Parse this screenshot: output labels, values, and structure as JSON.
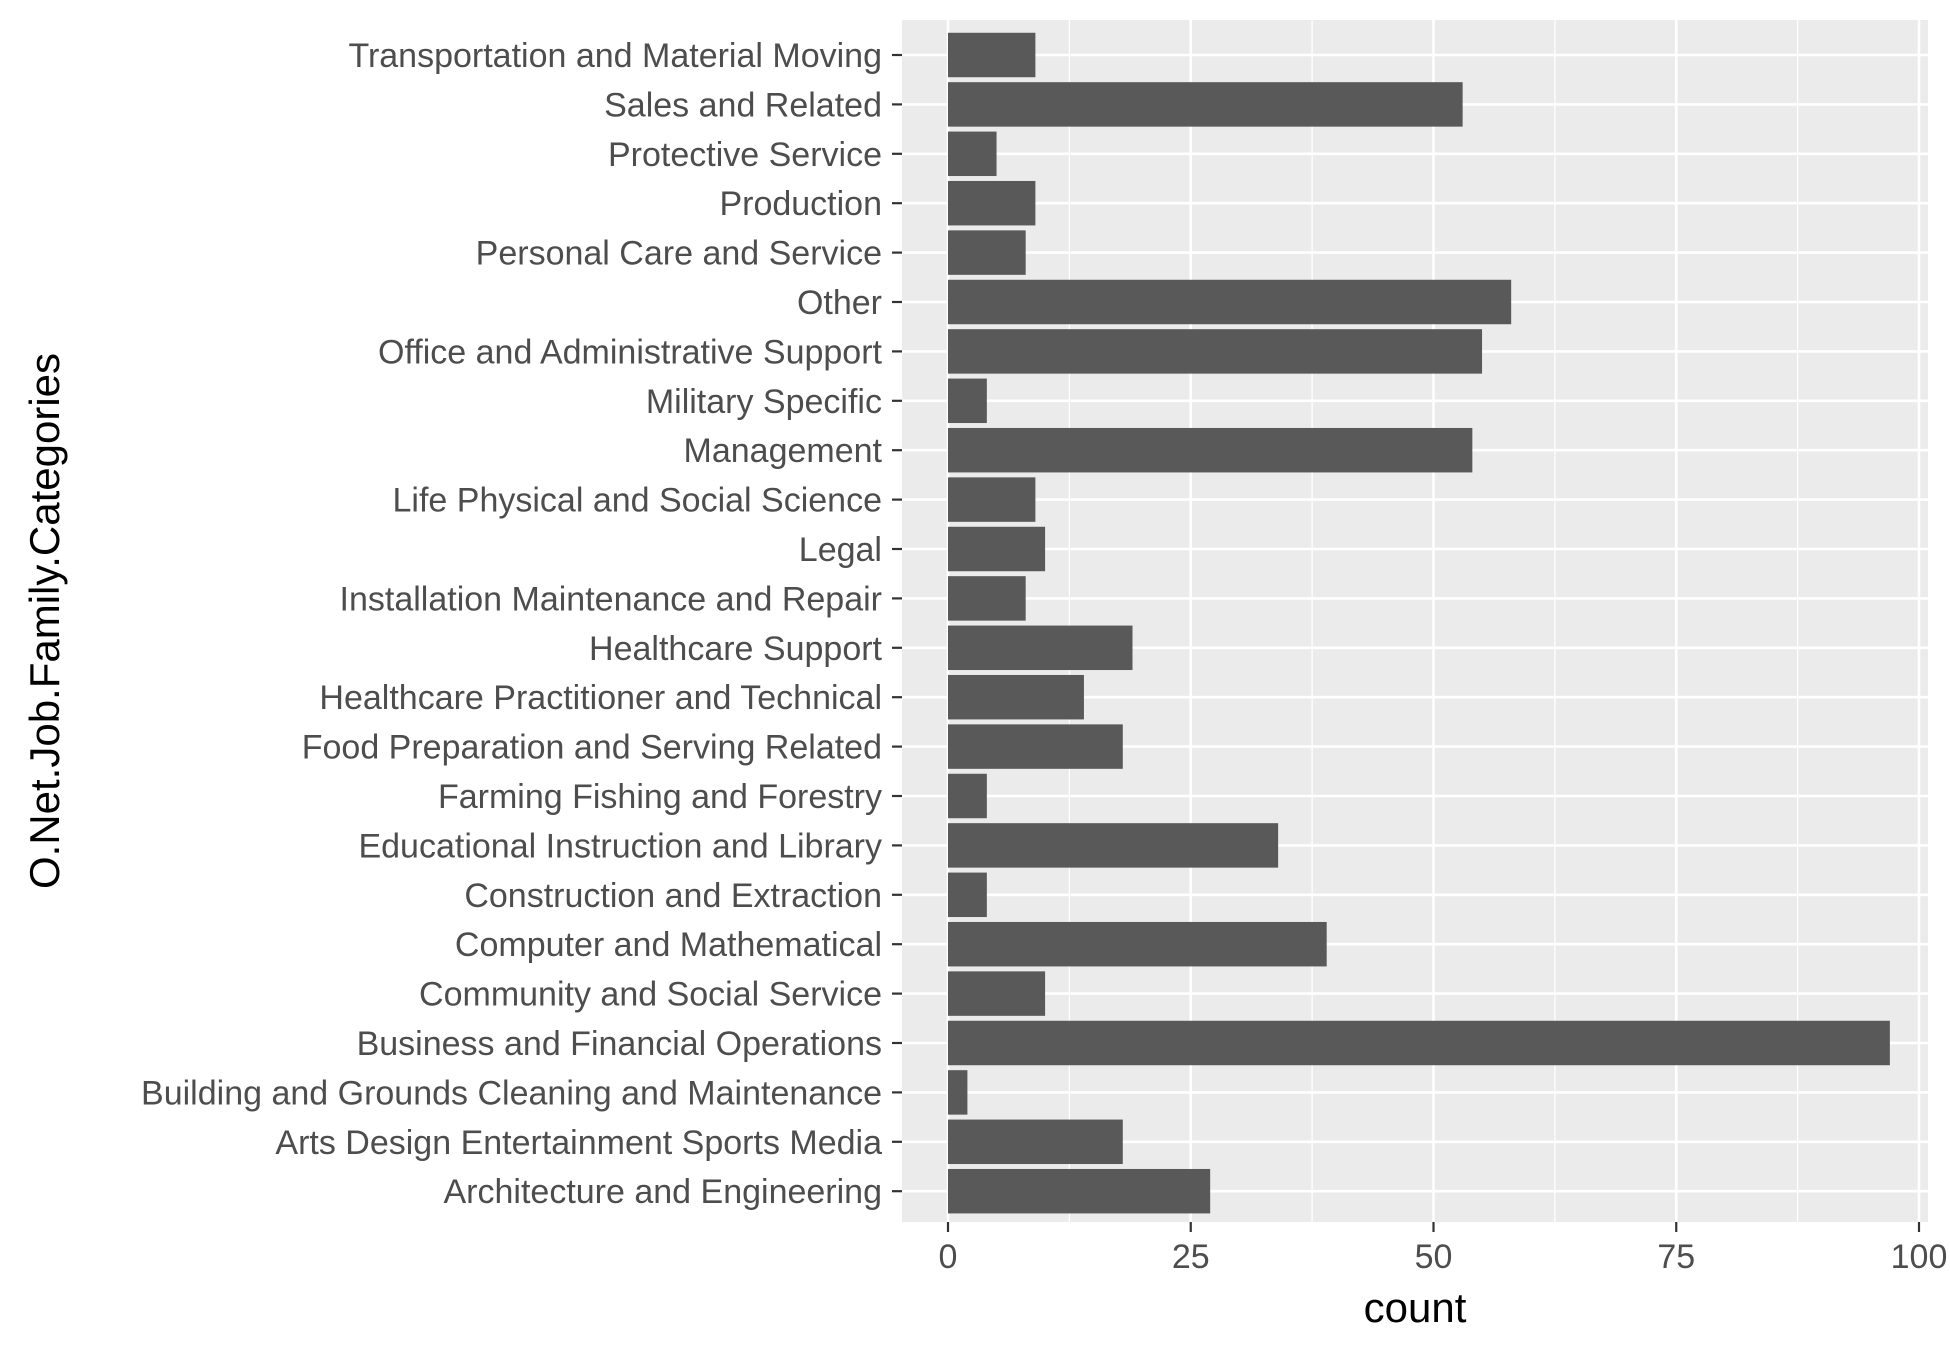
{
  "chart_data": {
    "type": "bar",
    "orientation": "horizontal",
    "xlabel": "count",
    "ylabel": "O.Net.Job.Family.Categories",
    "xlim": [
      -5,
      101
    ],
    "x_ticks": [
      0,
      25,
      50,
      75,
      100
    ],
    "grid": true,
    "categories": [
      "Transportation and Material Moving",
      "Sales and Related",
      "Protective Service",
      "Production",
      "Personal Care and Service",
      "Other",
      "Office and Administrative Support",
      "Military Specific",
      "Management",
      "Life Physical and Social Science",
      "Legal",
      "Installation Maintenance and Repair",
      "Healthcare Support",
      "Healthcare Practitioner and Technical",
      "Food Preparation and Serving Related",
      "Farming Fishing and Forestry",
      "Educational Instruction and Library",
      "Construction and Extraction",
      "Computer and Mathematical",
      "Community and Social Service",
      "Business and Financial Operations",
      "Building and Grounds Cleaning and Maintenance",
      "Arts Design Entertainment Sports Media",
      "Architecture and Engineering"
    ],
    "values": [
      9,
      53,
      5,
      9,
      8,
      58,
      55,
      4,
      54,
      9,
      10,
      8,
      19,
      14,
      18,
      4,
      34,
      4,
      39,
      10,
      97,
      2,
      18,
      27
    ],
    "colors": {
      "panel": "#EBEBEB",
      "bar": "#595959",
      "grid": "#FFFFFF",
      "tick_text": "#4D4D4D",
      "tick_mark": "#333333",
      "title_text": "#000000"
    }
  }
}
